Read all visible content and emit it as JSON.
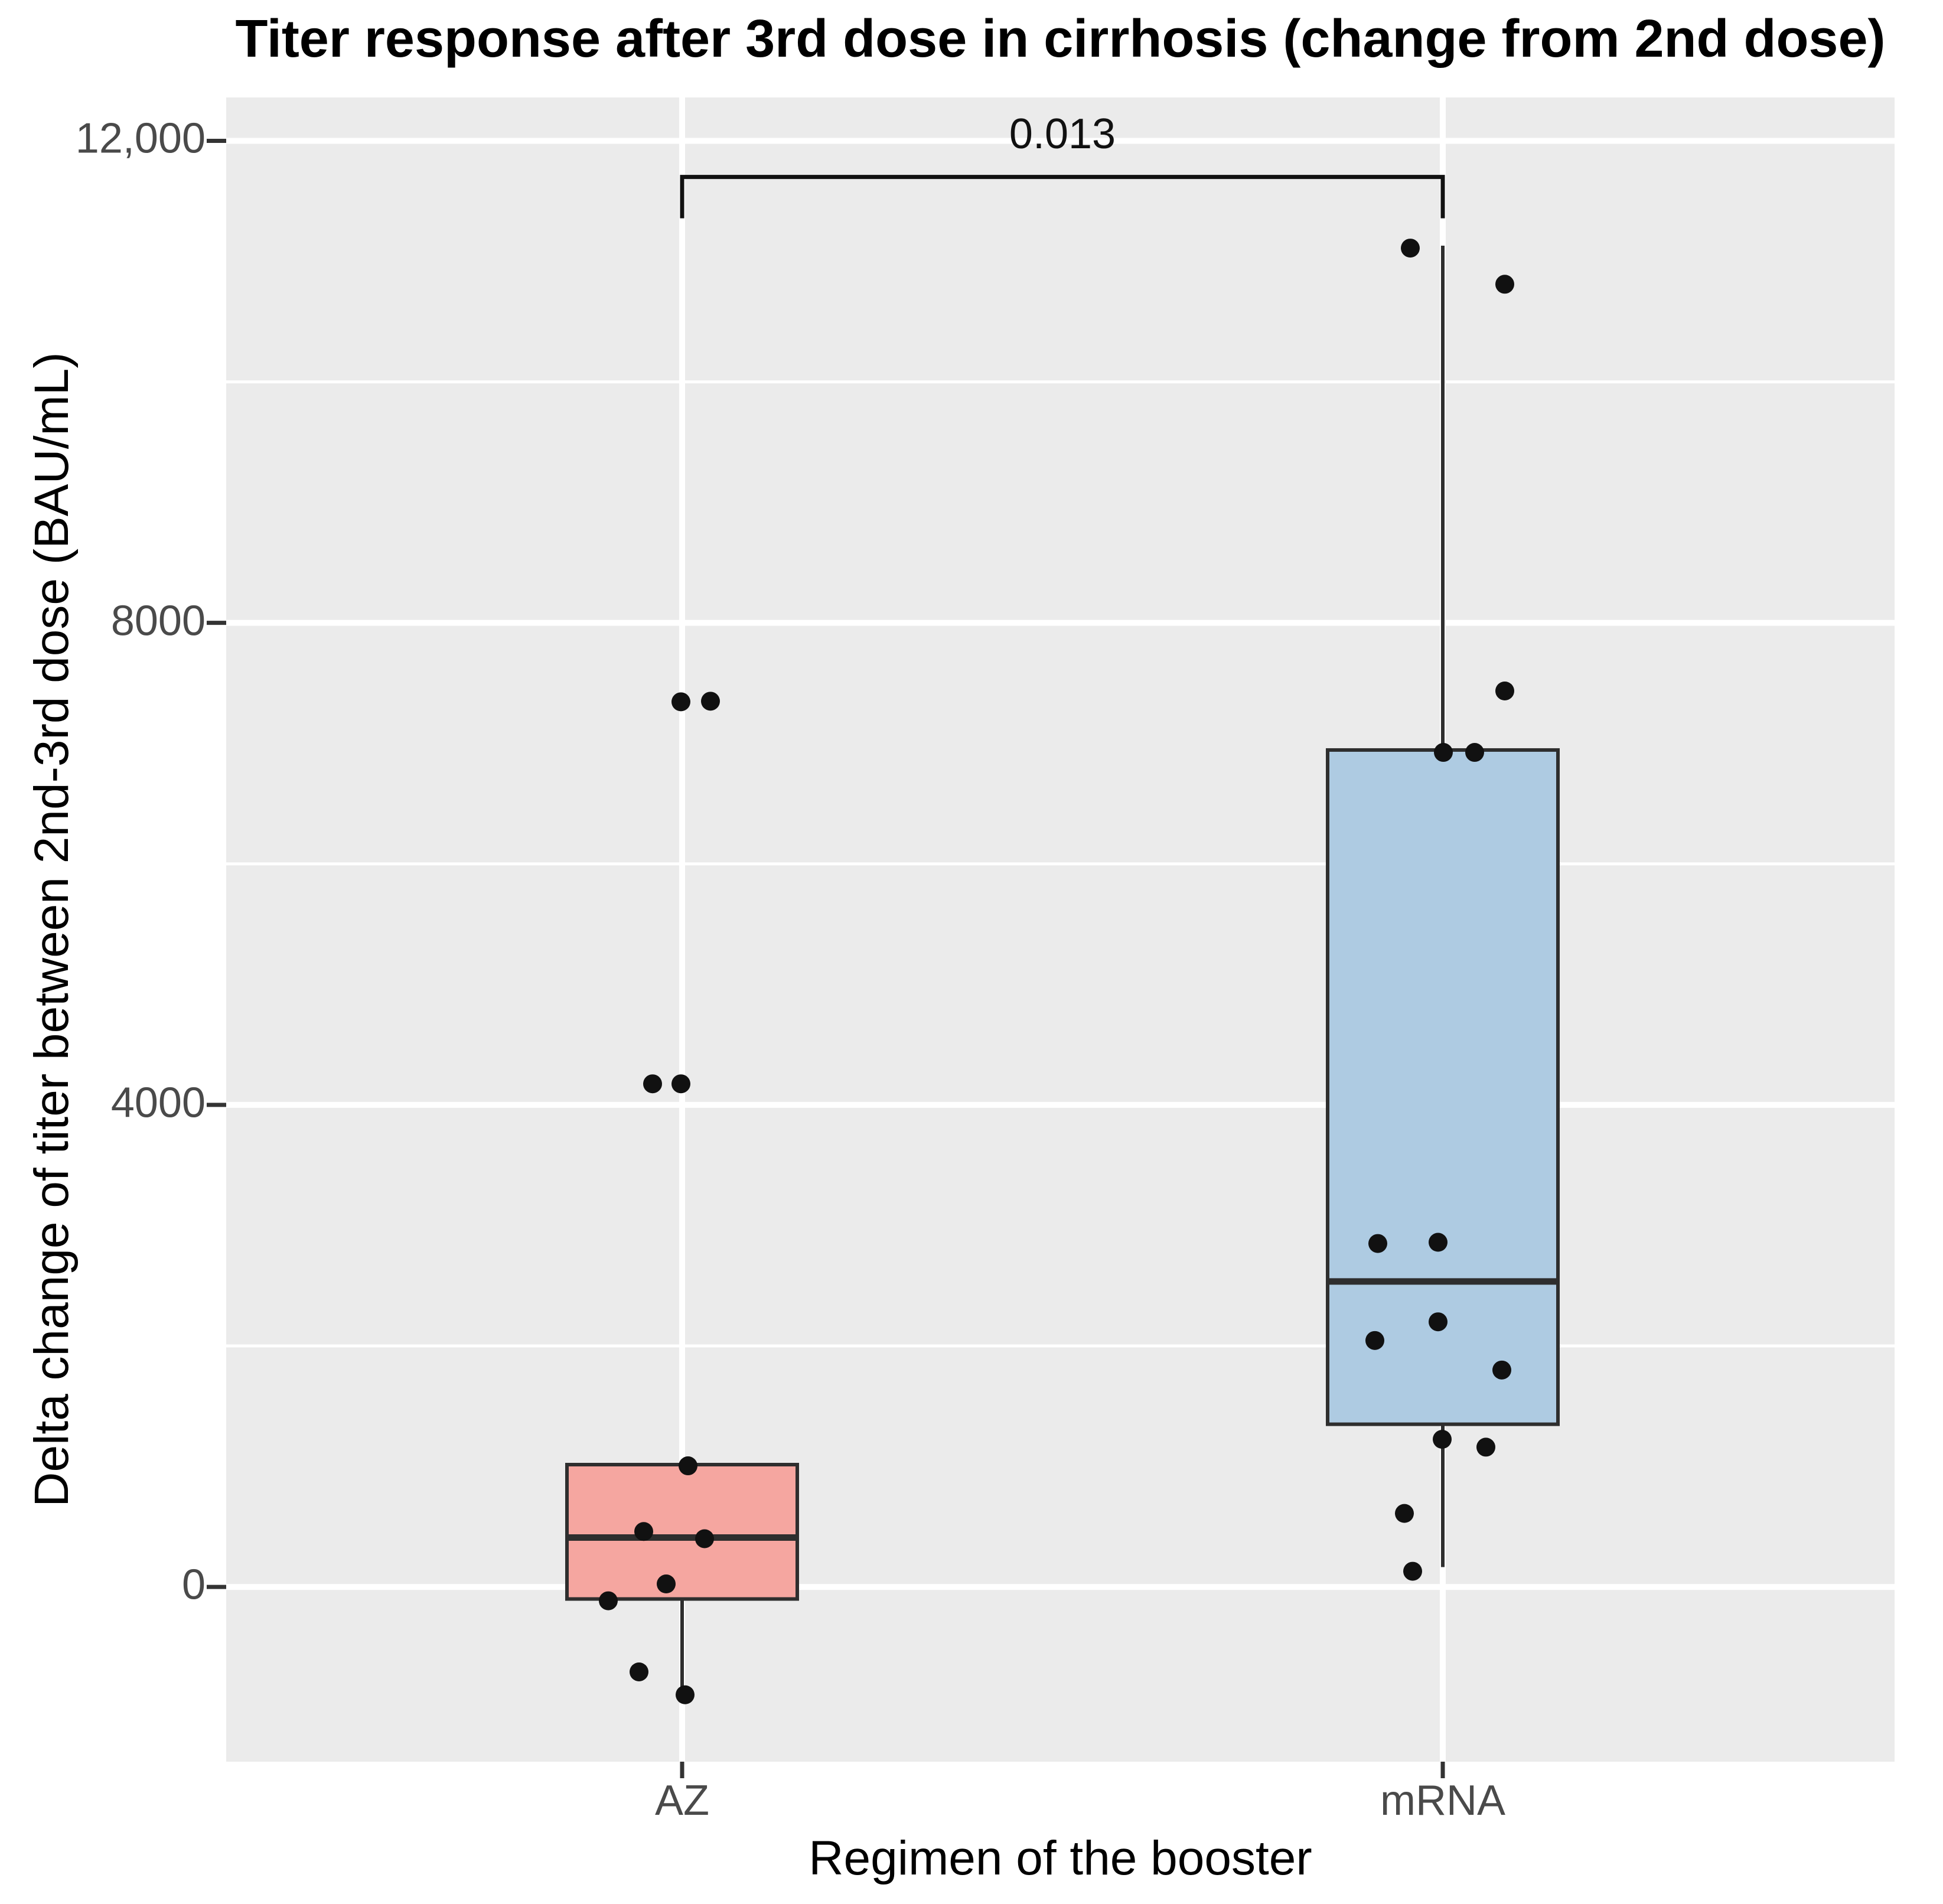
{
  "chart_data": {
    "type": "boxplot",
    "title": "Titer response after 3rd dose in cirrhosis (change from 2nd dose)",
    "xlabel": "Regimen of the booster",
    "ylabel": "Delta change of titer between 2nd-3rd dose (BAU/mL)",
    "ylim": [
      -1450,
      12360
    ],
    "yticks": [
      {
        "value": 0,
        "label": "0"
      },
      {
        "value": 4000,
        "label": "4000"
      },
      {
        "value": 8000,
        "label": "8000"
      },
      {
        "value": 12000,
        "label": "12,000"
      }
    ],
    "minor_gridlines": [
      2000,
      6000,
      10000
    ],
    "grid_on": true,
    "legend": "none",
    "significance": {
      "label": "0.013",
      "between": [
        "AZ",
        "mRNA"
      ],
      "bar_value": 11700
    },
    "categories": [
      "AZ",
      "mRNA"
    ],
    "groups": [
      {
        "name": "AZ",
        "fill": "#F5A6A0",
        "stats": {
          "whisker_low": -895,
          "q1": -100,
          "median": 410,
          "q3": 1015,
          "whisker_high": 1015
        },
        "points_dx_value": [
          [
            -2,
            7345
          ],
          [
            48,
            7350
          ],
          [
            -50,
            4175
          ],
          [
            -2,
            4175
          ],
          [
            10,
            1005
          ],
          [
            -65,
            460
          ],
          [
            38,
            400
          ],
          [
            -27,
            25
          ],
          [
            -125,
            -115
          ],
          [
            -73,
            -705
          ],
          [
            5,
            -895
          ]
        ]
      },
      {
        "name": "mRNA",
        "fill": "#AECBE2",
        "stats": {
          "whisker_low": 165,
          "q1": 1350,
          "median": 2535,
          "q3": 6945,
          "whisker_high": 11130
        },
        "points_dx_value": [
          [
            -55,
            11110
          ],
          [
            105,
            10810
          ],
          [
            105,
            7435
          ],
          [
            1,
            6925
          ],
          [
            54,
            6925
          ],
          [
            -110,
            2850
          ],
          [
            -8,
            2860
          ],
          [
            -8,
            2200
          ],
          [
            -115,
            2045
          ],
          [
            100,
            1800
          ],
          [
            -1,
            1225
          ],
          [
            73,
            1160
          ],
          [
            -65,
            610
          ],
          [
            -51,
            130
          ]
        ]
      }
    ],
    "colors": {
      "panel_background": "#EBEBEB",
      "gridline": "#FFFFFF",
      "box_border": "#2E2E2E",
      "point": "#111111",
      "tick_mark": "#333333",
      "tick_label": "#4a4a4a"
    }
  }
}
